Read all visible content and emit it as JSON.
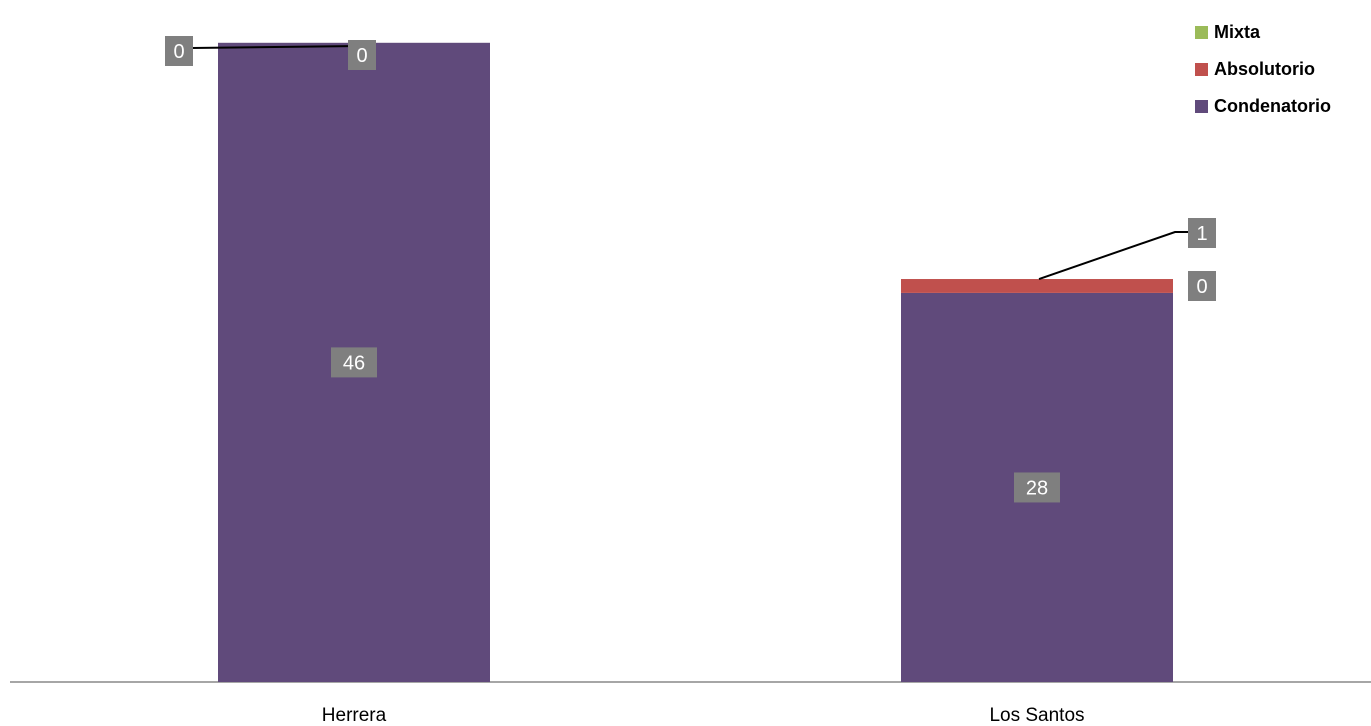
{
  "chart_data": {
    "type": "bar",
    "stacked": true,
    "categories": [
      "Herrera",
      "Los Santos"
    ],
    "series": [
      {
        "name": "Condenatorio",
        "color": "#604a7b",
        "values": [
          46,
          28
        ],
        "labels": [
          "46",
          "28"
        ]
      },
      {
        "name": "Absolutorio",
        "color": "#c0504d",
        "values": [
          0,
          1
        ],
        "labels": [
          "0",
          "1"
        ]
      },
      {
        "name": "Mixta",
        "color": "#9bbb59",
        "values": [
          0,
          0
        ],
        "labels": [
          "0",
          "0"
        ]
      }
    ],
    "legend_order": [
      "Mixta",
      "Absolutorio",
      "Condenatorio"
    ],
    "legend_position": "top-right",
    "ylim": [
      0,
      48
    ],
    "grid": false,
    "data_label_style": {
      "background": "#7f7f7f",
      "color": "#ffffff"
    }
  }
}
